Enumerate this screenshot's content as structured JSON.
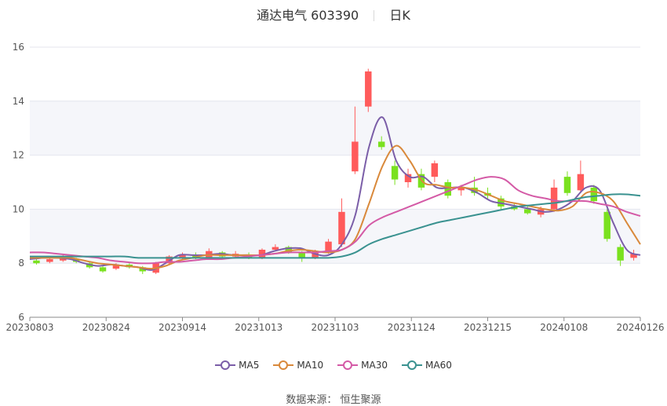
{
  "header": {
    "title": "通达电气 603390",
    "period": "日K"
  },
  "source_label": "数据来源：  恒生聚源",
  "chart_data": {
    "type": "line",
    "title": "通达电气 603390",
    "subtitle": "日K",
    "ylim": [
      6,
      16
    ],
    "yticks": [
      "6",
      "8",
      "10",
      "12",
      "14",
      "16"
    ],
    "xticks": [
      "20230803",
      "20230824",
      "20230914",
      "20231013",
      "20231103",
      "20231124",
      "20231215",
      "20240108",
      "20240126"
    ],
    "grid": true,
    "legend_position": "bottom",
    "colors": {
      "up": "#ff5b5b",
      "down": "#7ae11f",
      "MA5": "#7b5ea8",
      "MA10": "#d9893b",
      "MA30": "#d45aa6",
      "MA60": "#3a9290"
    },
    "series": [
      {
        "name": "MA5",
        "values": [
          8.15,
          8.2,
          8.2,
          8.15,
          8.0,
          7.9,
          7.95,
          7.9,
          7.85,
          7.75,
          8.0,
          8.3,
          8.3,
          8.3,
          8.35,
          8.3,
          8.3,
          8.3,
          8.45,
          8.55,
          8.55,
          8.35,
          8.3,
          8.7,
          9.8,
          12.3,
          13.4,
          11.8,
          11.2,
          11.2,
          10.8,
          10.8,
          10.8,
          10.6,
          10.3,
          10.2,
          10.1,
          10.0,
          9.9,
          10.0,
          10.3,
          10.8,
          10.7,
          9.5,
          8.5,
          8.3
        ]
      },
      {
        "name": "MA10",
        "values": [
          8.2,
          8.2,
          8.2,
          8.2,
          8.1,
          8.0,
          7.95,
          7.9,
          7.85,
          7.8,
          7.9,
          8.1,
          8.2,
          8.3,
          8.3,
          8.3,
          8.3,
          8.3,
          8.35,
          8.45,
          8.5,
          8.45,
          8.4,
          8.5,
          8.9,
          10.2,
          11.6,
          12.35,
          11.8,
          11.0,
          10.9,
          10.8,
          10.8,
          10.7,
          10.5,
          10.3,
          10.2,
          10.1,
          10.0,
          9.95,
          10.1,
          10.6,
          10.6,
          10.3,
          9.5,
          8.7
        ]
      },
      {
        "name": "MA30",
        "values": [
          8.4,
          8.4,
          8.35,
          8.3,
          8.25,
          8.2,
          8.1,
          8.05,
          8.0,
          8.0,
          8.05,
          8.05,
          8.1,
          8.15,
          8.15,
          8.2,
          8.25,
          8.3,
          8.35,
          8.4,
          8.4,
          8.4,
          8.45,
          8.5,
          8.8,
          9.4,
          9.7,
          9.9,
          10.1,
          10.3,
          10.5,
          10.7,
          10.9,
          11.1,
          11.2,
          11.1,
          10.7,
          10.5,
          10.4,
          10.3,
          10.3,
          10.3,
          10.2,
          10.1,
          9.9,
          9.75
        ]
      },
      {
        "name": "MA60",
        "values": [
          8.25,
          8.25,
          8.25,
          8.25,
          8.25,
          8.25,
          8.25,
          8.25,
          8.2,
          8.2,
          8.2,
          8.2,
          8.2,
          8.2,
          8.2,
          8.2,
          8.2,
          8.2,
          8.2,
          8.2,
          8.2,
          8.2,
          8.2,
          8.25,
          8.4,
          8.7,
          8.9,
          9.05,
          9.2,
          9.35,
          9.5,
          9.6,
          9.7,
          9.8,
          9.9,
          10.0,
          10.1,
          10.15,
          10.2,
          10.25,
          10.35,
          10.45,
          10.5,
          10.55,
          10.55,
          10.5
        ]
      }
    ],
    "candles": [
      [
        8.1,
        8.0,
        8.2,
        7.95
      ],
      [
        8.05,
        8.15,
        8.25,
        8.0
      ],
      [
        8.1,
        8.2,
        8.3,
        8.05
      ],
      [
        8.15,
        8.05,
        8.2,
        8.0
      ],
      [
        8.0,
        7.85,
        8.05,
        7.8
      ],
      [
        7.85,
        7.7,
        7.9,
        7.65
      ],
      [
        7.8,
        7.95,
        8.0,
        7.75
      ],
      [
        7.95,
        7.85,
        8.0,
        7.8
      ],
      [
        7.85,
        7.7,
        7.9,
        7.6
      ],
      [
        7.65,
        8.0,
        8.05,
        7.6
      ],
      [
        8.0,
        8.25,
        8.3,
        7.95
      ],
      [
        8.2,
        8.3,
        8.4,
        8.15
      ],
      [
        8.3,
        8.2,
        8.4,
        8.15
      ],
      [
        8.2,
        8.45,
        8.55,
        8.15
      ],
      [
        8.4,
        8.25,
        8.45,
        8.2
      ],
      [
        8.25,
        8.35,
        8.45,
        8.2
      ],
      [
        8.3,
        8.2,
        8.4,
        8.15
      ],
      [
        8.2,
        8.5,
        8.55,
        8.15
      ],
      [
        8.5,
        8.6,
        8.7,
        8.45
      ],
      [
        8.6,
        8.4,
        8.65,
        8.35
      ],
      [
        8.4,
        8.2,
        8.45,
        8.05
      ],
      [
        8.2,
        8.45,
        8.5,
        8.15
      ],
      [
        8.4,
        8.8,
        8.9,
        8.35
      ],
      [
        8.7,
        9.9,
        10.4,
        8.6
      ],
      [
        11.4,
        12.5,
        13.8,
        11.3
      ],
      [
        13.8,
        15.1,
        15.2,
        13.6
      ],
      [
        12.5,
        12.3,
        12.7,
        12.2
      ],
      [
        11.6,
        11.1,
        11.8,
        10.9
      ],
      [
        11.0,
        11.3,
        11.5,
        10.8
      ],
      [
        11.3,
        10.8,
        11.5,
        10.7
      ],
      [
        11.2,
        11.7,
        11.8,
        11.0
      ],
      [
        11.0,
        10.5,
        11.1,
        10.4
      ],
      [
        10.7,
        10.8,
        10.9,
        10.5
      ],
      [
        10.8,
        10.6,
        11.2,
        10.5
      ],
      [
        10.6,
        10.5,
        10.8,
        10.4
      ],
      [
        10.4,
        10.1,
        10.5,
        10.0
      ],
      [
        10.1,
        10.0,
        10.2,
        9.95
      ],
      [
        10.0,
        9.85,
        10.1,
        9.8
      ],
      [
        9.8,
        10.0,
        10.1,
        9.7
      ],
      [
        10.0,
        10.8,
        11.1,
        9.9
      ],
      [
        11.2,
        10.6,
        11.4,
        10.5
      ],
      [
        10.7,
        11.3,
        11.8,
        10.6
      ],
      [
        10.8,
        10.3,
        10.9,
        10.2
      ],
      [
        9.9,
        8.9,
        10.0,
        8.8
      ],
      [
        8.6,
        8.1,
        8.7,
        7.9
      ],
      [
        8.2,
        8.35,
        8.5,
        8.1
      ]
    ]
  }
}
